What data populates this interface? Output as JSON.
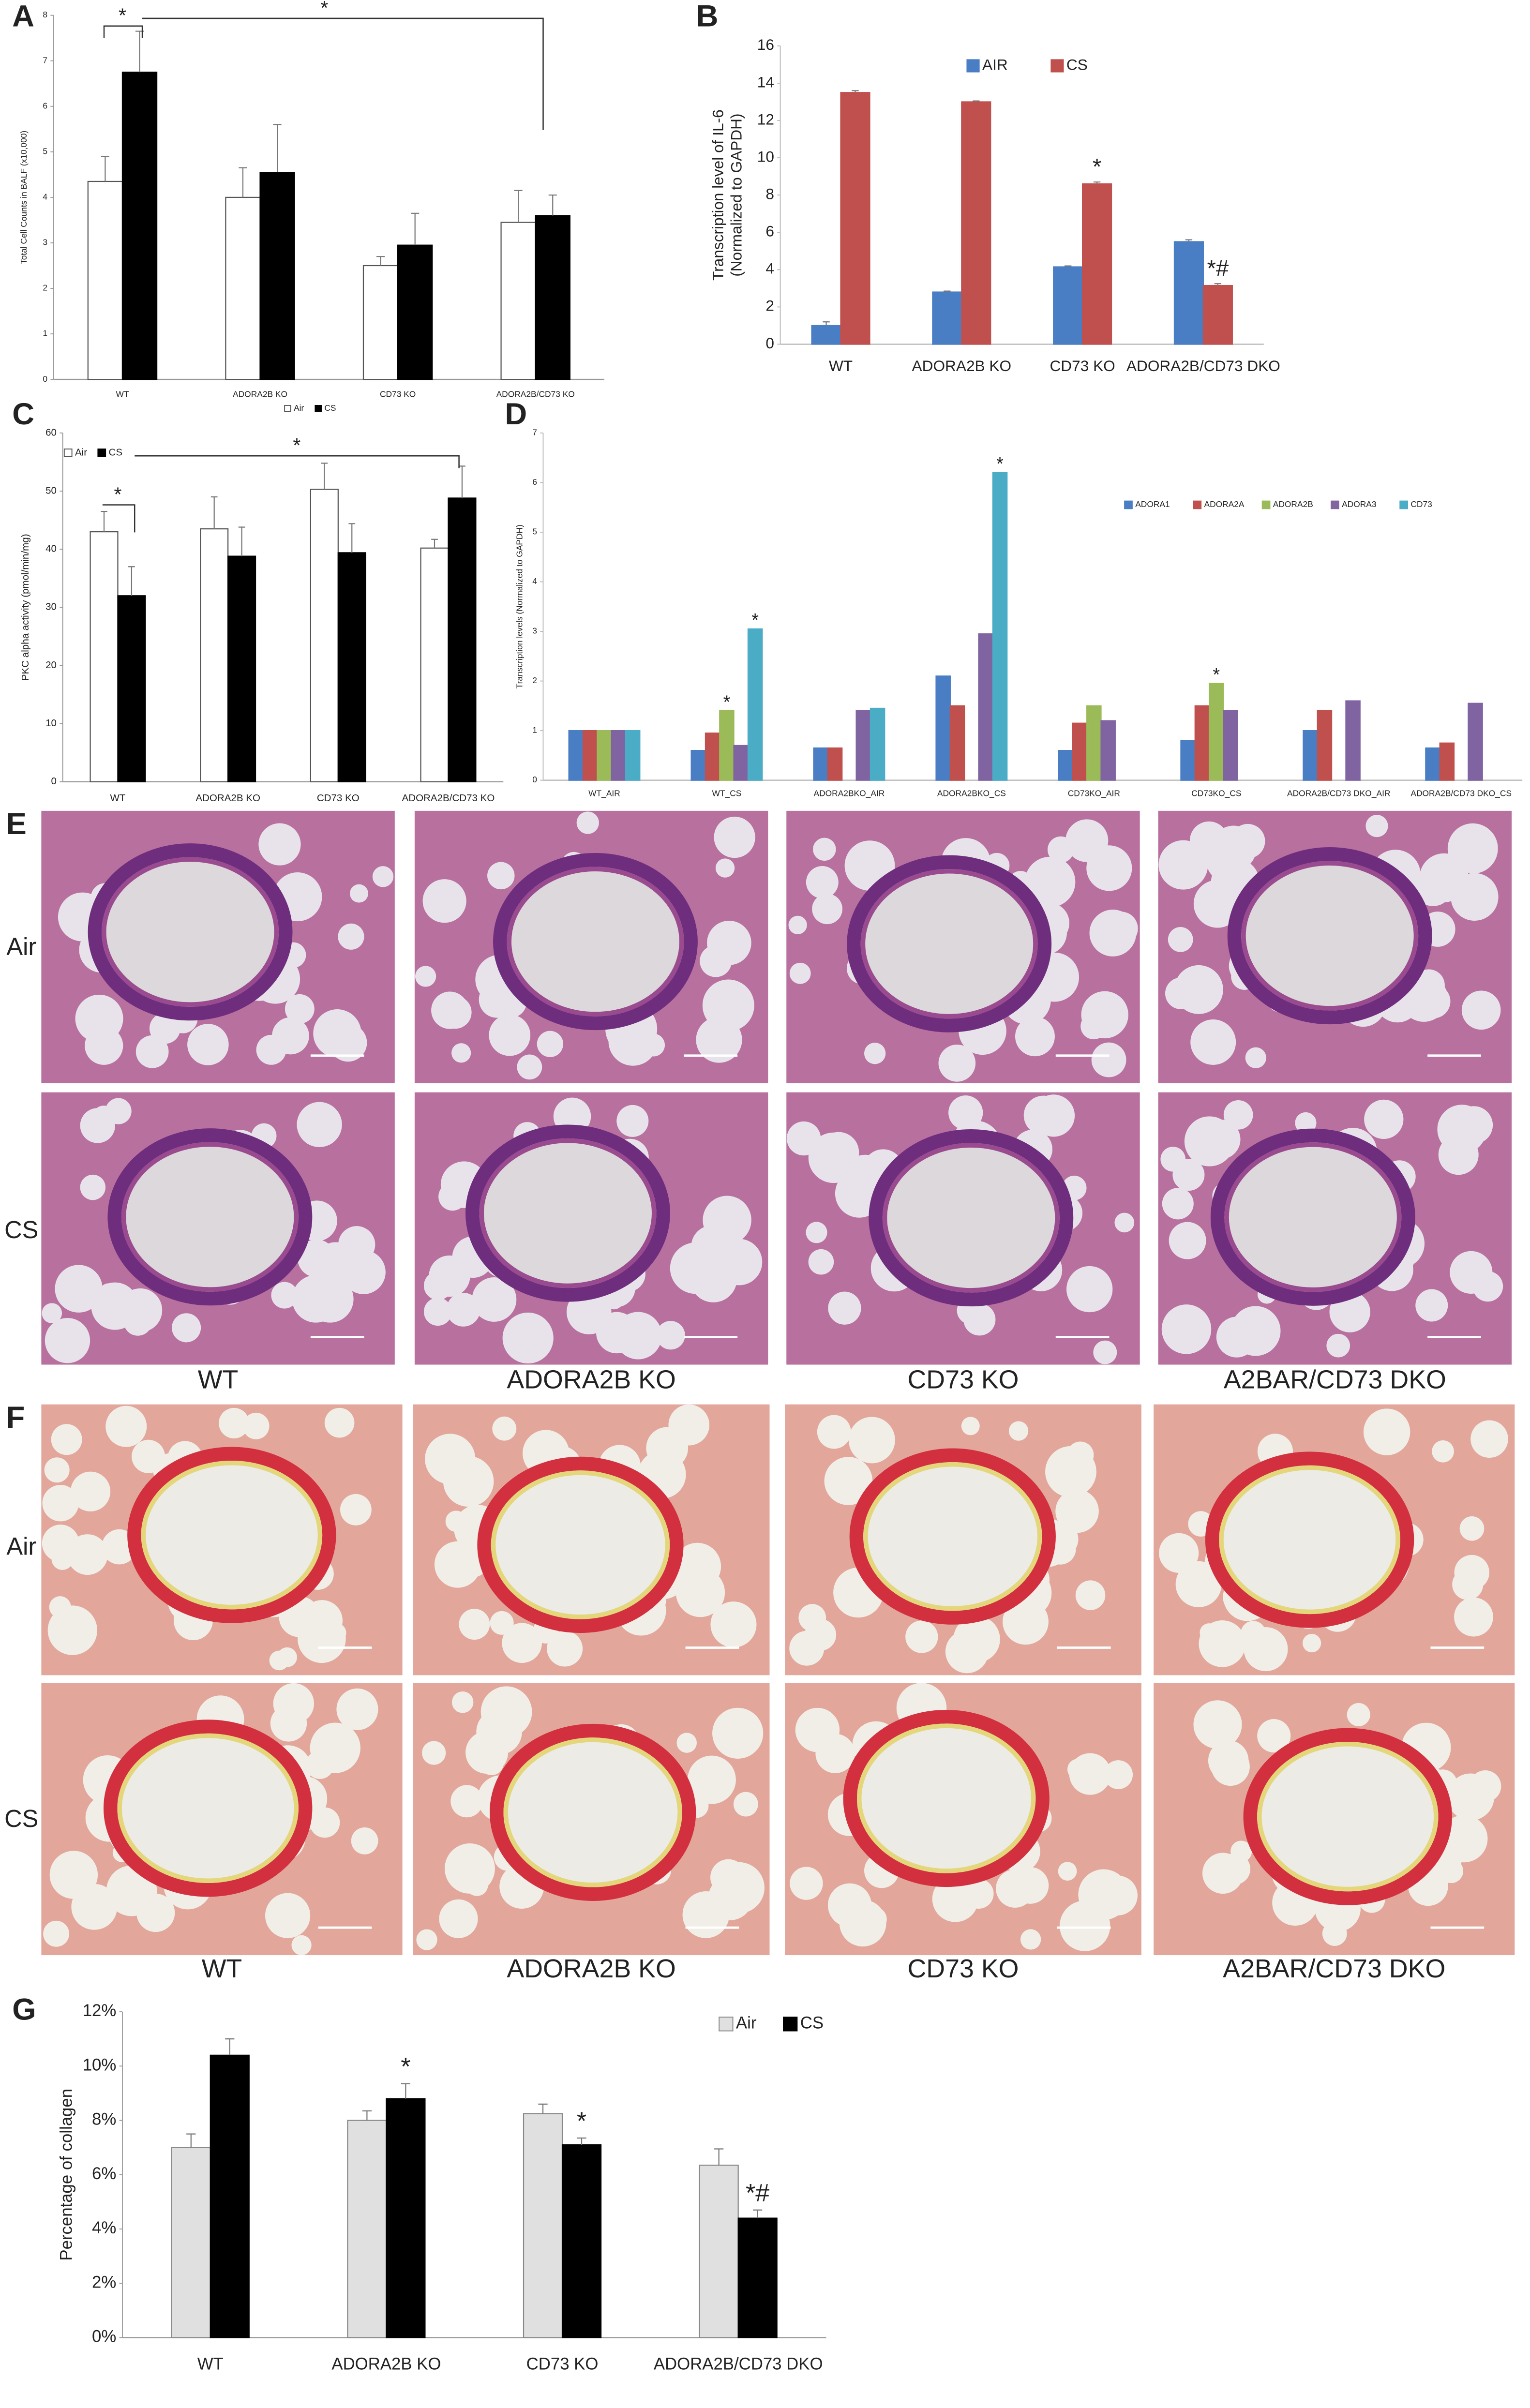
{
  "chart_data": [
    {
      "type": "bar",
      "panel": "A",
      "ylabel": "Total Cell Counts in BALF (x10,000)",
      "categories": [
        "WT",
        "ADORA2B KO",
        "CD73 KO",
        "ADORA2B/CD73 KO"
      ],
      "series": [
        {
          "name": "Air",
          "color": "#ffffff",
          "edgecolor": "#555555",
          "values": [
            4.35,
            4.0,
            2.5,
            3.45
          ],
          "errors": [
            0.55,
            0.65,
            0.2,
            0.7
          ]
        },
        {
          "name": "CS",
          "color": "#000000",
          "edgecolor": "#000000",
          "values": [
            6.75,
            4.55,
            2.95,
            3.6
          ],
          "errors": [
            0.9,
            1.05,
            0.7,
            0.45
          ]
        }
      ],
      "annotations": [
        "*",
        "*"
      ],
      "ylim": [
        0,
        8
      ],
      "yticks": [
        0,
        1,
        2,
        3,
        4,
        5,
        6,
        7,
        8
      ]
    },
    {
      "type": "bar",
      "panel": "B",
      "ylabel": [
        "Transcription level of IL-6",
        "(Normalized to GAPDH)"
      ],
      "categories": [
        "WT",
        "ADORA2B KO",
        "CD73 KO",
        "ADORA2B/CD73 DKO"
      ],
      "series": [
        {
          "name": "AIR",
          "color": "#4a7ec4",
          "edgecolor": "#4a7ec4",
          "values": [
            1.0,
            2.8,
            4.15,
            5.5
          ],
          "errors": [
            0.2,
            0.05,
            0.05,
            0.1
          ]
        },
        {
          "name": "CS",
          "color": "#c0504d",
          "edgecolor": "#c0504d",
          "values": [
            13.5,
            13.0,
            8.6,
            3.15
          ],
          "errors": [
            0.1,
            0.05,
            0.1,
            0.1
          ],
          "labels": [
            null,
            null,
            "*",
            "*#"
          ]
        }
      ],
      "ylim": [
        0,
        16
      ],
      "yticks": [
        0,
        2,
        4,
        6,
        8,
        10,
        12,
        14,
        16
      ]
    },
    {
      "type": "bar",
      "panel": "C",
      "ylabel": "PKC alpha activity (pmol/min/mg)",
      "categories": [
        "WT",
        "ADORA2B KO",
        "CD73 KO",
        "ADORA2B/CD73 KO"
      ],
      "series": [
        {
          "name": "Air",
          "color": "#ffffff",
          "edgecolor": "#555555",
          "values": [
            43,
            43.5,
            50.3,
            40.2
          ],
          "errors": [
            3.5,
            5.5,
            4.5,
            1.5
          ]
        },
        {
          "name": "CS",
          "color": "#000000",
          "edgecolor": "#000000",
          "values": [
            32,
            38.8,
            39.4,
            48.8
          ],
          "errors": [
            5,
            5,
            5,
            5.5
          ]
        }
      ],
      "annotations": [
        "*",
        "*"
      ],
      "ylim": [
        0,
        60
      ],
      "yticks": [
        0,
        10,
        20,
        30,
        40,
        50,
        60
      ]
    },
    {
      "type": "bar",
      "panel": "D",
      "ylabel": "Transcription levels (Normalized to GAPDH)",
      "categories": [
        "WT_AIR",
        "WT_CS",
        "ADORA2BKO_AIR",
        "ADORA2BKO_CS",
        "CD73KO_AIR",
        "CD73KO_CS",
        "ADORA2B/CD73 DKO_AIR",
        "ADORA2B/CD73 DKO_CS"
      ],
      "series": [
        {
          "name": "ADORA1",
          "color": "#4a7ec4",
          "edgecolor": "#4a7ec4",
          "values": [
            1,
            0.6,
            0.65,
            2.1,
            0.6,
            0.8,
            1.0,
            0.65
          ]
        },
        {
          "name": "ADORA2A",
          "color": "#c0504d",
          "edgecolor": "#c0504d",
          "values": [
            1,
            0.95,
            0.65,
            1.5,
            1.15,
            1.5,
            1.4,
            0.75
          ]
        },
        {
          "name": "ADORA2B",
          "color": "#9bbb59",
          "edgecolor": "#9bbb59",
          "values": [
            1,
            1.4,
            null,
            null,
            1.5,
            1.95,
            null,
            null
          ],
          "labels": [
            null,
            "*",
            null,
            null,
            null,
            "*",
            null,
            null
          ]
        },
        {
          "name": "ADORA3",
          "color": "#8064a2",
          "edgecolor": "#8064a2",
          "values": [
            1,
            0.7,
            1.4,
            2.95,
            1.2,
            1.4,
            1.6,
            1.55
          ]
        },
        {
          "name": "CD73",
          "color": "#4bacc6",
          "edgecolor": "#4bacc6",
          "values": [
            1,
            3.05,
            1.45,
            6.2,
            null,
            null,
            null,
            null
          ],
          "labels": [
            null,
            "*",
            null,
            "*",
            null,
            null,
            null,
            null
          ]
        }
      ],
      "ylim": [
        0,
        7
      ],
      "yticks": [
        0,
        1,
        2,
        3,
        4,
        5,
        6,
        7
      ]
    },
    {
      "type": "bar",
      "panel": "G",
      "ylabel": "Percentage of collagen",
      "categories": [
        "WT",
        "ADORA2B KO",
        "CD73 KO",
        "ADORA2B/CD73 DKO"
      ],
      "series": [
        {
          "name": "Air",
          "color": "#e0e0e0",
          "edgecolor": "#888888",
          "values": [
            7.0,
            8.0,
            8.25,
            6.35
          ],
          "errors": [
            0.5,
            0.35,
            0.35,
            0.6
          ]
        },
        {
          "name": "CS",
          "color": "#000000",
          "edgecolor": "#000000",
          "values": [
            10.4,
            8.8,
            7.1,
            4.4
          ],
          "errors": [
            0.6,
            0.55,
            0.25,
            0.3
          ],
          "labels": [
            null,
            "*",
            "*",
            "*#"
          ]
        }
      ],
      "ylim": [
        0,
        12
      ],
      "yticks": [
        {
          "value": 0,
          "label": "0%"
        },
        {
          "value": 2,
          "label": "2%"
        },
        {
          "value": 4,
          "label": "4%"
        },
        {
          "value": 6,
          "label": "6%"
        },
        {
          "value": 8,
          "label": "8%"
        },
        {
          "value": 10,
          "label": "10%"
        },
        {
          "value": 12,
          "label": "12%"
        }
      ]
    }
  ],
  "image_panels": [
    {
      "panel": "E",
      "rows": [
        "Air",
        "CS"
      ],
      "columns": [
        "WT",
        "ADORA2B KO",
        "CD73 KO",
        "A2BAR/CD73 DKO"
      ]
    },
    {
      "panel": "F",
      "rows": [
        "Air",
        "CS"
      ],
      "columns": [
        "WT",
        "ADORA2B KO",
        "CD73 KO",
        "A2BAR/CD73 DKO"
      ]
    }
  ]
}
